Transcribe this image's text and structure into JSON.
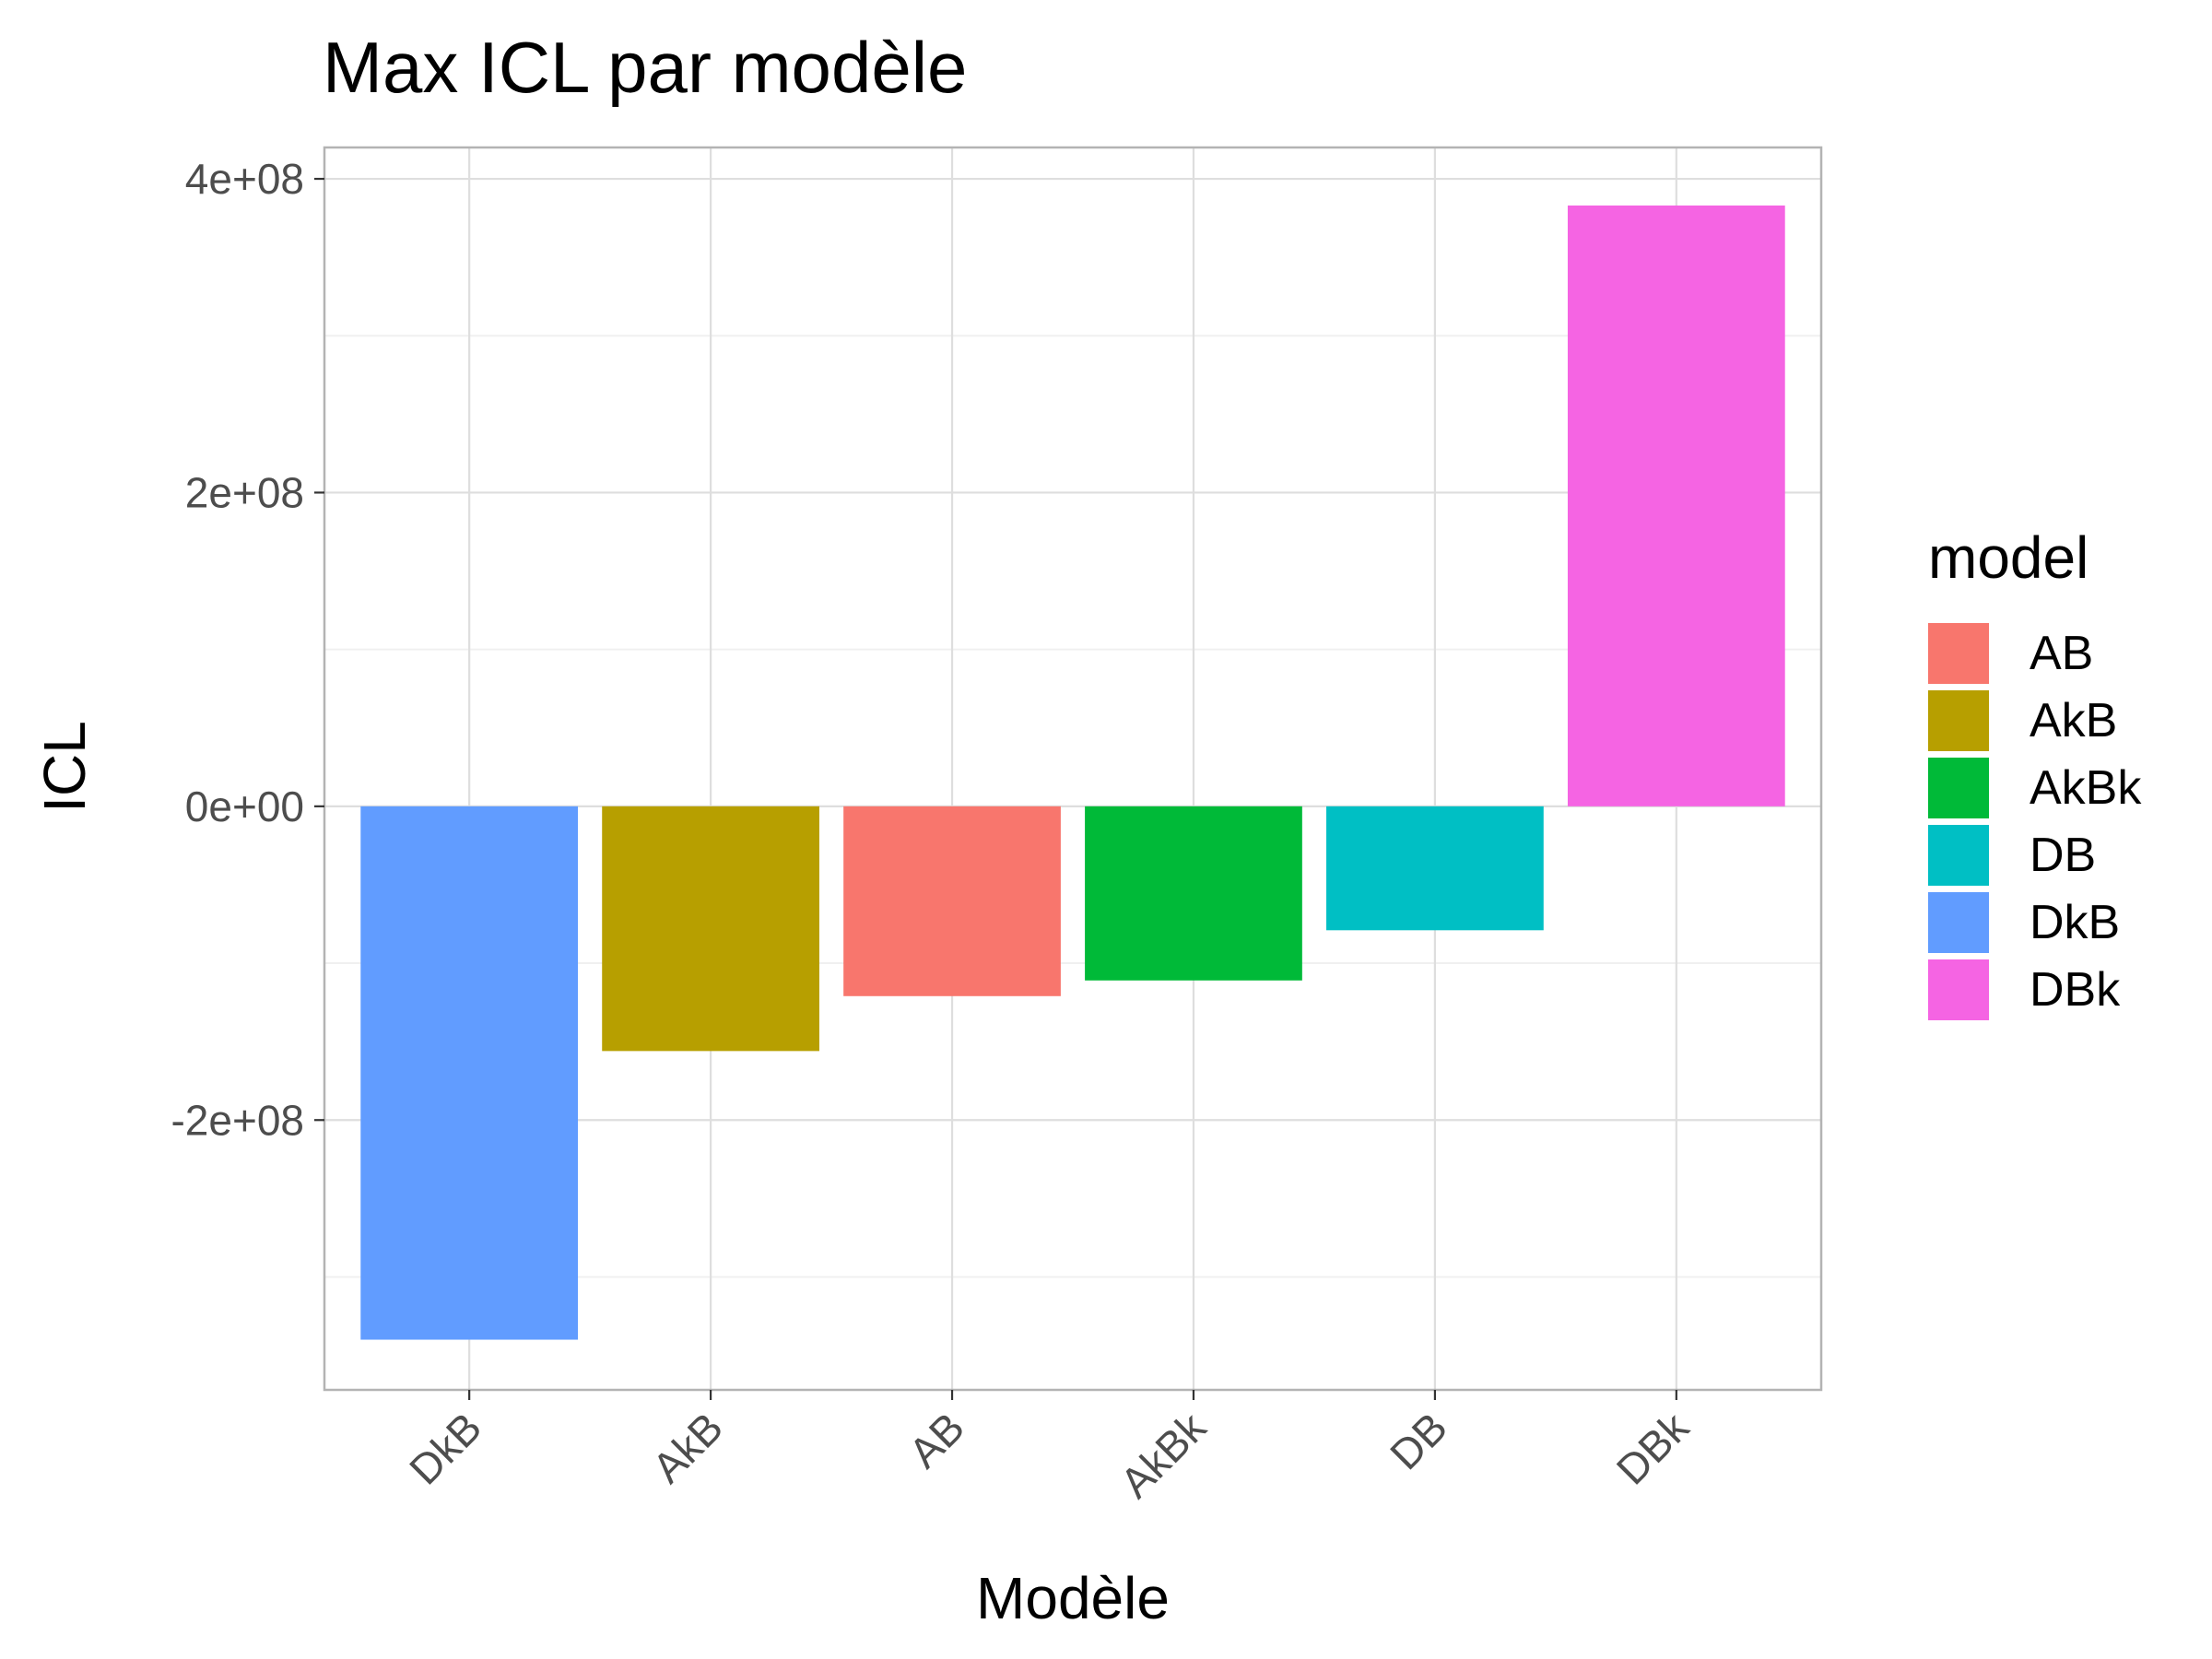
{
  "chart_data": {
    "type": "bar",
    "title": "Max ICL par modèle",
    "xlabel": "Modèle",
    "ylabel": "ICL",
    "categories": [
      "DkB",
      "AkB",
      "AB",
      "AkBk",
      "DB",
      "DBk"
    ],
    "values": [
      -340000000,
      -156000000,
      -121000000,
      -111000000,
      -79000000,
      383000000
    ],
    "ylim": [
      -372000000,
      420000000
    ],
    "y_ticks": [
      -200000000,
      0,
      200000000,
      400000000
    ],
    "y_tick_labels": [
      "-2e+08",
      "0e+00",
      "2e+08",
      "4e+08"
    ],
    "grid": true,
    "x_tick_rotation": "45",
    "legend": {
      "title": "model",
      "placement": "right",
      "items": [
        {
          "label": "AB",
          "color": "#F8766D"
        },
        {
          "label": "AkB",
          "color": "#B79F00"
        },
        {
          "label": "AkBk",
          "color": "#00BA38"
        },
        {
          "label": "DB",
          "color": "#00BFC4"
        },
        {
          "label": "DkB",
          "color": "#619CFF"
        },
        {
          "label": "DBk",
          "color": "#F564E3"
        }
      ]
    },
    "bar_colors": {
      "DkB": "#619CFF",
      "AkB": "#B79F00",
      "AB": "#F8766D",
      "AkBk": "#00BA38",
      "DB": "#00BFC4",
      "DBk": "#F564E3"
    }
  }
}
